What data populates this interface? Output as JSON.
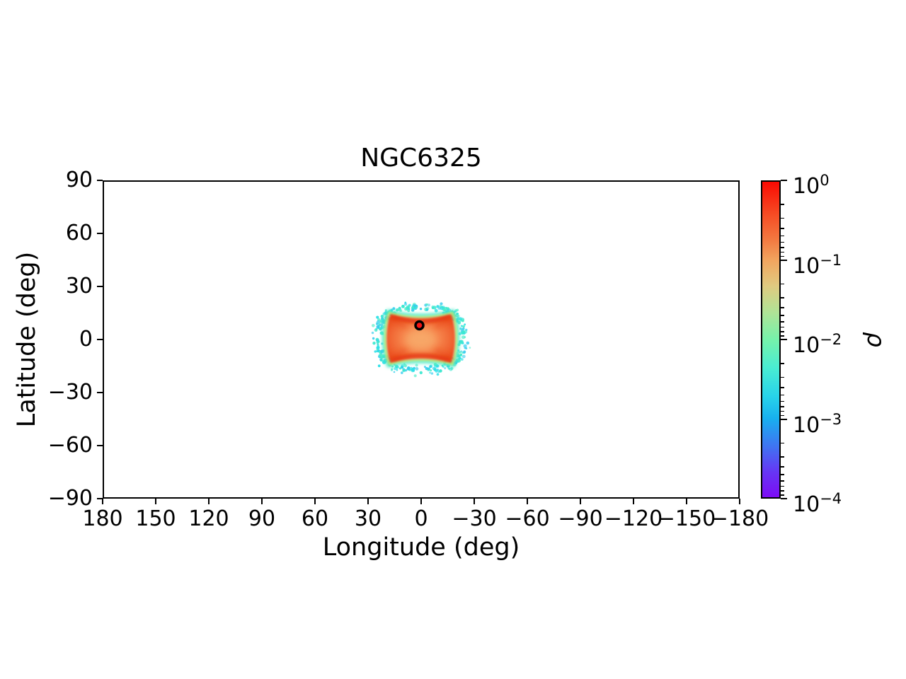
{
  "figure": {
    "background": "#ffffff"
  },
  "chart_data": {
    "type": "heatmap",
    "title": "NGC6325",
    "xlabel": "Longitude (deg)",
    "ylabel": "Latitude (deg)",
    "xlim": [
      180,
      -180
    ],
    "ylim": [
      -90,
      90
    ],
    "x_ticks": [
      180,
      150,
      120,
      90,
      60,
      30,
      0,
      -30,
      -60,
      -90,
      -120,
      -150,
      -180
    ],
    "y_ticks": [
      90,
      60,
      30,
      0,
      -30,
      -60,
      -90
    ],
    "grid": false,
    "legend": false,
    "colorbar": {
      "label": "ρ",
      "scale": "log",
      "vmin": 0.0001,
      "vmax": 1,
      "tick_exponents": [
        0,
        -1,
        -2,
        -3,
        -4
      ],
      "colormap": "rainbow",
      "position": "right",
      "gradient_stops": [
        {
          "pos": 0.0,
          "color": "#fa0a02"
        },
        {
          "pos": 0.1,
          "color": "#f64a23"
        },
        {
          "pos": 0.18,
          "color": "#f3773f"
        },
        {
          "pos": 0.25,
          "color": "#f2a55f"
        },
        {
          "pos": 0.33,
          "color": "#e0ca80"
        },
        {
          "pos": 0.41,
          "color": "#b2e295"
        },
        {
          "pos": 0.5,
          "color": "#76f2ab"
        },
        {
          "pos": 0.59,
          "color": "#49edd2"
        },
        {
          "pos": 0.68,
          "color": "#28d3e9"
        },
        {
          "pos": 0.75,
          "color": "#18b0ef"
        },
        {
          "pos": 0.84,
          "color": "#4073f2"
        },
        {
          "pos": 0.92,
          "color": "#6636f4"
        },
        {
          "pos": 1.0,
          "color": "#7d0cf6"
        }
      ]
    },
    "density_blob": {
      "description": "Pillow/box-shaped probability density centered near the Galactic center: red-orange core (rho ~ 0.1-1) with darker red caustic ridges along concave top/bottom edges and corners, thin yellow-green rim (rho ~ 0.01) and scattered cyan outlier dots (rho ~ 0.001-0.01)",
      "center": {
        "lon": 0.2,
        "lat": 0.6
      },
      "half_width_deg": 19.4,
      "half_height_deg": 13.8,
      "halo_extent_deg": 22.5,
      "edge_sag_deg": 3.2,
      "body_gradient": [
        {
          "pos": 0.0,
          "color": "#f8a263"
        },
        {
          "pos": 0.45,
          "color": "#f5824a"
        },
        {
          "pos": 0.75,
          "color": "#f06330"
        },
        {
          "pos": 1.0,
          "color": "#e9481a"
        }
      ],
      "core_highlight_color": "#f8aa6a",
      "ridge_color": "#e23008",
      "corner_ridge_color": "#e84612",
      "rim_inner_color": "#b2ee84",
      "rim_outer_color": "#3fe8c4",
      "halo_colors": [
        "#2ee0e8",
        "#3de8d0",
        "#35cdee",
        "#52eec8"
      ]
    },
    "marker": {
      "lon": 1.0,
      "lat": 8.0,
      "style": "filled circle",
      "face_color": "#f51515",
      "edge_color": "#000000"
    }
  }
}
